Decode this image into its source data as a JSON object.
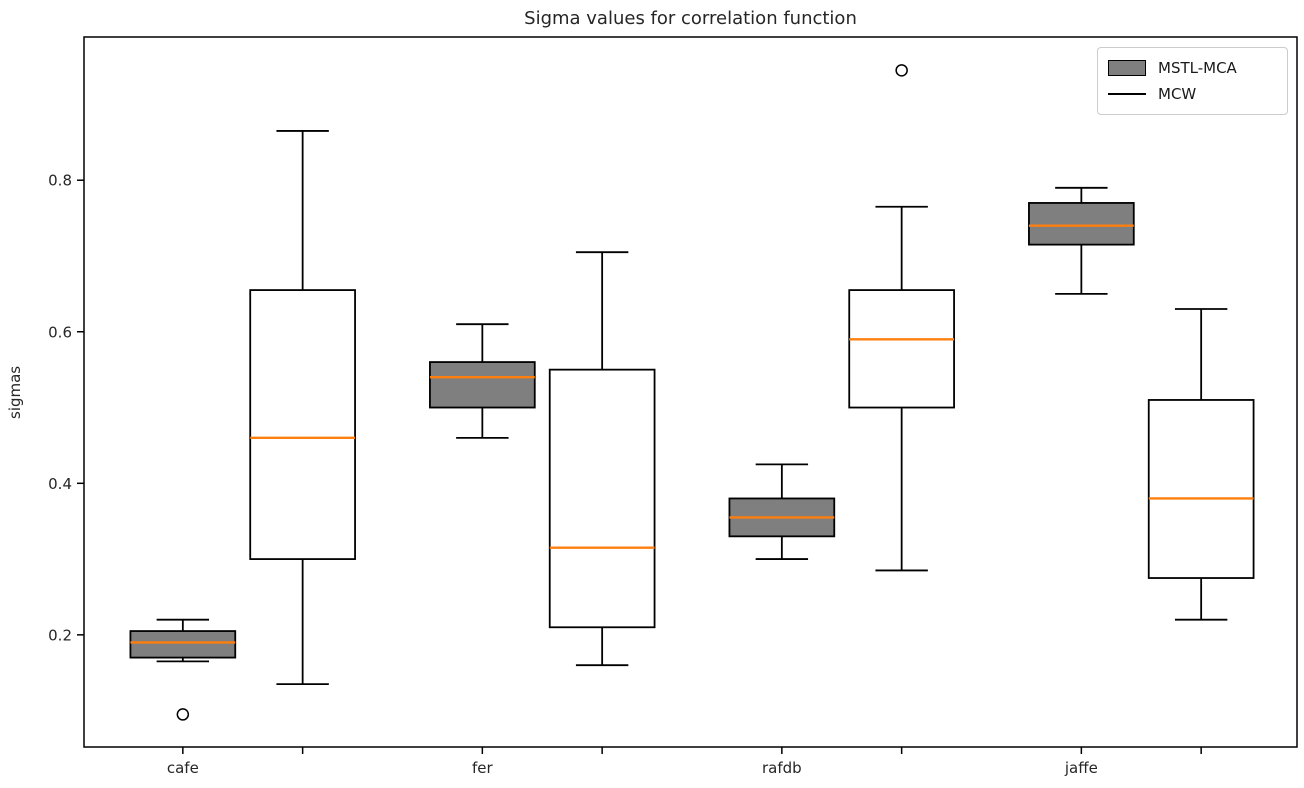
{
  "chart_data": {
    "type": "boxplot",
    "title": "Sigma values for correlation function",
    "xlabel": "",
    "ylabel": "sigmas",
    "categories": [
      "cafe",
      "fer",
      "rafdb",
      "jaffe"
    ],
    "ylim": [
      0.052,
      0.989
    ],
    "xlim": [
      0.67,
      4.72
    ],
    "yticks": [
      0.2,
      0.4,
      0.6,
      0.8
    ],
    "ytick_labels": [
      "0.2",
      "0.4",
      "0.6",
      "0.8"
    ],
    "xticks": {
      "positions": [
        1,
        1.4,
        2,
        2.4,
        3,
        3.4,
        4,
        4.4
      ],
      "labels": [
        "cafe",
        "",
        "fer",
        "",
        "rafdb",
        "",
        "jaffe",
        ""
      ]
    },
    "grid": false,
    "box_width": 0.35,
    "median_color": "#ff7f0e",
    "edge_color": "#000000",
    "background_color": "#ffffff",
    "legend": {
      "position": "upper-right"
    },
    "series": [
      {
        "name": "MSTL-MCA",
        "style": "filled-patch",
        "fill": "#7f7f7f",
        "positions": [
          1,
          2,
          3,
          4
        ],
        "boxes": [
          {
            "category": "cafe",
            "whislo": 0.165,
            "q1": 0.17,
            "med": 0.19,
            "q3": 0.205,
            "whishi": 0.22,
            "fliers": [
              0.095
            ]
          },
          {
            "category": "fer",
            "whislo": 0.46,
            "q1": 0.5,
            "med": 0.54,
            "q3": 0.56,
            "whishi": 0.61,
            "fliers": []
          },
          {
            "category": "rafdb",
            "whislo": 0.3,
            "q1": 0.33,
            "med": 0.355,
            "q3": 0.38,
            "whishi": 0.425,
            "fliers": []
          },
          {
            "category": "jaffe",
            "whislo": 0.65,
            "q1": 0.715,
            "med": 0.74,
            "q3": 0.77,
            "whishi": 0.79,
            "fliers": []
          }
        ]
      },
      {
        "name": "MCW",
        "style": "line-patch",
        "fill": "#ffffff",
        "positions": [
          1.4,
          2.4,
          3.4,
          4.4
        ],
        "boxes": [
          {
            "category": "cafe",
            "whislo": 0.135,
            "q1": 0.3,
            "med": 0.46,
            "q3": 0.655,
            "whishi": 0.865,
            "fliers": []
          },
          {
            "category": "fer",
            "whislo": 0.16,
            "q1": 0.21,
            "med": 0.315,
            "q3": 0.55,
            "whishi": 0.705,
            "fliers": []
          },
          {
            "category": "rafdb",
            "whislo": 0.285,
            "q1": 0.5,
            "med": 0.59,
            "q3": 0.655,
            "whishi": 0.765,
            "fliers": [
              0.945
            ]
          },
          {
            "category": "jaffe",
            "whislo": 0.22,
            "q1": 0.275,
            "med": 0.38,
            "q3": 0.51,
            "whishi": 0.63,
            "fliers": []
          }
        ]
      }
    ]
  }
}
